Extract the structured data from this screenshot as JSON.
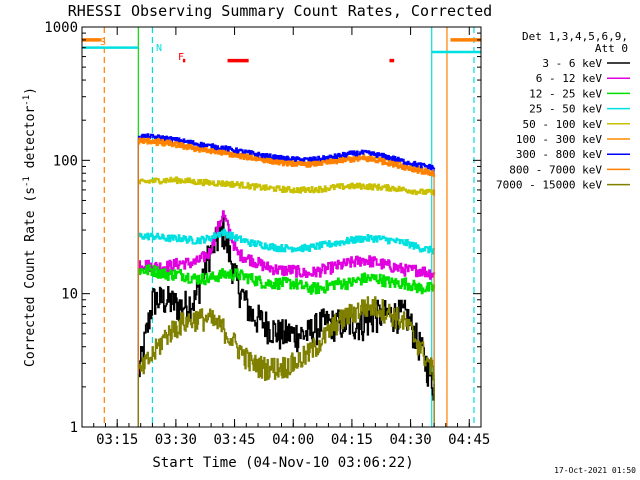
{
  "chart_data": {
    "type": "line",
    "title": "RHESSI Observing Summary Count Rates, Corrected",
    "xlabel": "Start Time (04-Nov-10 03:06:22)",
    "ylabel": "Corrected Count Rate (s",
    "ylabel_sup1": "-1",
    "ylabel_mid": " detector",
    "ylabel_sup2": "-1",
    "ylabel_end": ")",
    "y_scale": "log",
    "ylim": [
      1,
      1000
    ],
    "xlim": [
      3.1,
      4.8
    ],
    "x_ticks": [
      {
        "v": 3.25,
        "label": "03:15"
      },
      {
        "v": 3.5,
        "label": "03:30"
      },
      {
        "v": 3.75,
        "label": "03:45"
      },
      {
        "v": 4.0,
        "label": "04:00"
      },
      {
        "v": 4.25,
        "label": "04:15"
      },
      {
        "v": 4.5,
        "label": "04:30"
      },
      {
        "v": 4.75,
        "label": "04:45"
      }
    ],
    "y_ticks": [
      {
        "v": 1,
        "label": "1"
      },
      {
        "v": 10,
        "label": "10"
      },
      {
        "v": 100,
        "label": "100"
      },
      {
        "v": 1000,
        "label": "1000"
      }
    ],
    "legend_header": [
      "Det 1,3,4,5,6,9,",
      "Att 0"
    ],
    "legend_position": "right",
    "series": [
      {
        "name": "3 - 6 keV",
        "color": "#000000",
        "level": [
          2.5,
          9,
          9,
          8,
          9,
          20,
          30,
          12,
          7,
          6,
          5,
          5,
          5,
          6,
          6,
          6,
          6,
          7,
          7,
          7,
          4,
          2
        ],
        "noise": 0.28
      },
      {
        "name": "6 - 12 keV",
        "color": "#e000e0",
        "level": [
          17,
          16,
          16,
          17,
          17,
          20,
          40,
          20,
          18,
          16,
          15,
          15,
          14,
          15,
          16,
          17,
          18,
          17,
          16,
          15,
          15,
          14
        ],
        "noise": 0.1
      },
      {
        "name": "12 - 25 keV",
        "color": "#00e000",
        "level": [
          15,
          15,
          14,
          14,
          13,
          13,
          14,
          14,
          13,
          12,
          12,
          12,
          11,
          11,
          12,
          12,
          13,
          13,
          12,
          12,
          11,
          11
        ],
        "noise": 0.1
      },
      {
        "name": "25 - 50 keV",
        "color": "#00e0e0",
        "level": [
          27,
          27,
          26,
          26,
          25,
          26,
          29,
          26,
          24,
          23,
          22,
          22,
          22,
          23,
          24,
          25,
          26,
          26,
          25,
          24,
          22,
          21
        ],
        "noise": 0.06
      },
      {
        "name": "50 - 100 keV",
        "color": "#c8c000",
        "level": [
          68,
          70,
          71,
          71,
          69,
          68,
          67,
          66,
          64,
          62,
          61,
          60,
          60,
          61,
          63,
          64,
          64,
          63,
          62,
          60,
          58,
          57
        ],
        "noise": 0.05
      },
      {
        "name": "100 - 300 keV",
        "color": "#ff8c00",
        "level": [
          138,
          136,
          132,
          128,
          122,
          118,
          115,
          110,
          106,
          102,
          98,
          96,
          95,
          97,
          100,
          104,
          106,
          103,
          98,
          92,
          86,
          80
        ],
        "noise": 0.04
      },
      {
        "name": "300 - 800 keV",
        "color": "#0000ff",
        "level": [
          152,
          150,
          146,
          140,
          134,
          128,
          124,
          118,
          113,
          108,
          104,
          102,
          101,
          103,
          107,
          112,
          114,
          110,
          104,
          97,
          92,
          88
        ],
        "noise": 0.04
      },
      {
        "name": "800 - 7000 keV",
        "color": "#ff7f00",
        "level": [
          142,
          140,
          136,
          130,
          124,
          118,
          114,
          108,
          104,
          100,
          96,
          94,
          93,
          95,
          98,
          101,
          102,
          99,
          94,
          88,
          83,
          79
        ],
        "noise": 0.04
      },
      {
        "name": "7000 - 15000 keV",
        "color": "#808000",
        "level": [
          2.5,
          3.5,
          5,
          6,
          6.5,
          6.5,
          5.5,
          4,
          3,
          2.8,
          2.8,
          3,
          3.5,
          4.5,
          6,
          7,
          8,
          8,
          7,
          6,
          4,
          2.5
        ],
        "noise": 0.2
      }
    ],
    "data_t_start": 3.34,
    "data_t_end": 4.6,
    "flags": [
      {
        "label": "S",
        "color": "#ff7f00"
      },
      {
        "label": "N",
        "color": "#00e0e0"
      },
      {
        "label": "F",
        "color": "#ff0000"
      }
    ],
    "events": [
      {
        "type": "night",
        "color": "#00e0e0",
        "t_start": 3.1,
        "t_end": 3.34,
        "level": 700
      },
      {
        "type": "night",
        "color": "#00e0e0",
        "t_start": 4.59,
        "t_end": 4.8,
        "level": 650
      },
      {
        "type": "saa",
        "color": "#ff7f00",
        "t_start": 3.1,
        "t_end": 3.18,
        "level": 800
      },
      {
        "type": "saa",
        "color": "#ff7f00",
        "t_start": 4.67,
        "t_end": 4.8,
        "level": 800
      },
      {
        "type": "flare",
        "color": "#ff0000",
        "t_start": 3.53,
        "t_end": 3.54,
        "level": 560
      },
      {
        "type": "flare",
        "color": "#ff0000",
        "t_start": 3.72,
        "t_end": 3.81,
        "level": 560
      },
      {
        "type": "flare",
        "color": "#ff0000",
        "t_start": 4.41,
        "t_end": 4.43,
        "level": 560
      }
    ],
    "vlines": [
      {
        "t": 3.195,
        "color": "#ff7f00",
        "dashed": true
      },
      {
        "t": 3.34,
        "color": "#00e000",
        "dashed": false
      },
      {
        "t": 3.4,
        "color": "#00e0e0",
        "dashed": true
      },
      {
        "t": 4.59,
        "color": "#00e0e0",
        "dashed": false
      },
      {
        "t": 4.655,
        "color": "#ff7f00",
        "dashed": false
      },
      {
        "t": 4.77,
        "color": "#00e0e0",
        "dashed": true
      }
    ]
  },
  "footer": {
    "timestamp": "17-Oct-2021 01:50"
  }
}
